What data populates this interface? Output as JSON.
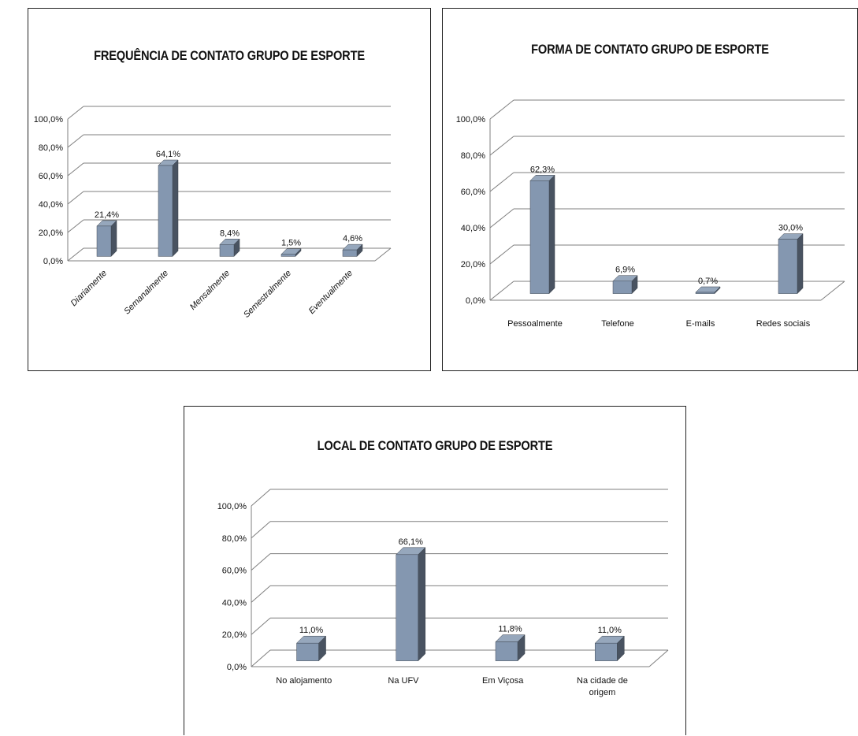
{
  "chart_data": [
    {
      "type": "bar",
      "title": "FREQUÊNCIA DE CONTATO GRUPO DE ESPORTE",
      "categories": [
        "Diariamente",
        "Semanalmente",
        "Mensalmente",
        "Semestralmente",
        "Eventualmente"
      ],
      "values": [
        21.4,
        64.1,
        8.4,
        1.5,
        4.6
      ],
      "value_labels": [
        "21,4%",
        "64,1%",
        "8,4%",
        "1,5%",
        "4,6%"
      ],
      "y_ticks": [
        "0,0%",
        "20,0%",
        "40,0%",
        "60,0%",
        "80,0%",
        "100,0%"
      ],
      "ylim": [
        0,
        100
      ],
      "grid": true,
      "style": "3d-column",
      "category_labels_rotated": true,
      "bar_color": "#8497b0"
    },
    {
      "type": "bar",
      "title": "FORMA DE CONTATO GRUPO DE ESPORTE",
      "categories": [
        "Pessoalmente",
        "Telefone",
        "E-mails",
        "Redes sociais"
      ],
      "values": [
        62.3,
        6.9,
        0.7,
        30.0
      ],
      "value_labels": [
        "62,3%",
        "6,9%",
        "0,7%",
        "30,0%"
      ],
      "y_ticks": [
        "0,0%",
        "20,0%",
        "40,0%",
        "60,0%",
        "80,0%",
        "100,0%"
      ],
      "ylim": [
        0,
        100
      ],
      "grid": true,
      "style": "3d-column",
      "category_labels_rotated": false,
      "bar_color": "#8497b0"
    },
    {
      "type": "bar",
      "title": "LOCAL DE CONTATO GRUPO DE ESPORTE",
      "categories": [
        "No alojamento",
        "Na UFV",
        "Em Viçosa",
        "Na cidade de origem"
      ],
      "category_lines": [
        [
          "No alojamento"
        ],
        [
          "Na UFV"
        ],
        [
          "Em Viçosa"
        ],
        [
          "Na cidade de",
          "origem"
        ]
      ],
      "values": [
        11.0,
        66.1,
        11.8,
        11.0
      ],
      "value_labels": [
        "11,0%",
        "66,1%",
        "11,8%",
        "11,0%"
      ],
      "y_ticks": [
        "0,0%",
        "20,0%",
        "40,0%",
        "60,0%",
        "80,0%",
        "100,0%"
      ],
      "ylim": [
        0,
        100
      ],
      "grid": true,
      "style": "3d-column",
      "category_labels_rotated": false,
      "bar_color": "#8497b0"
    }
  ]
}
